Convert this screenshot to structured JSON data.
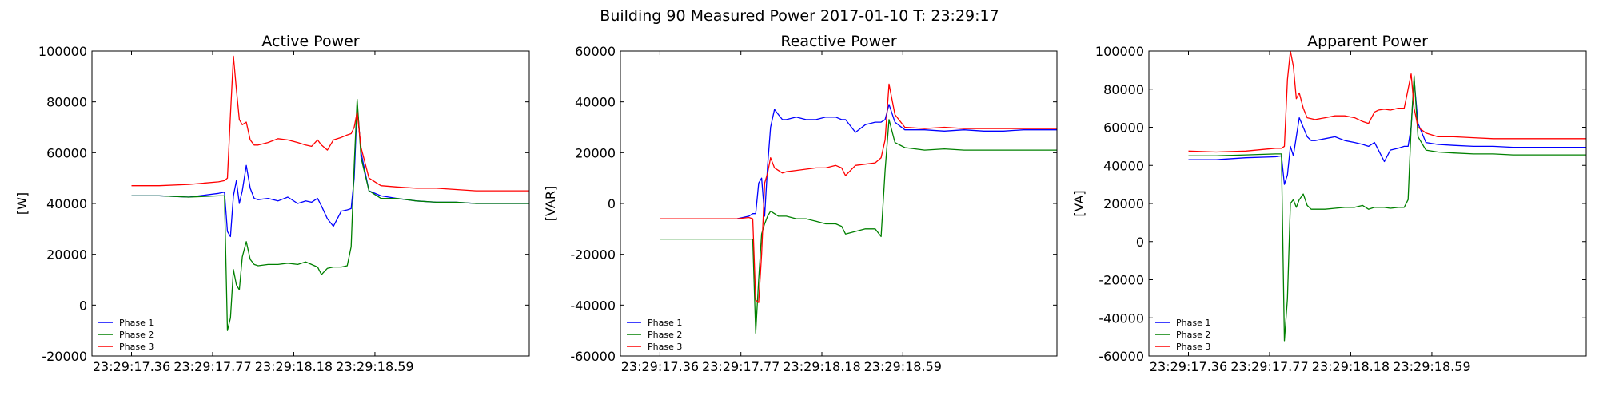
{
  "figure": {
    "suptitle": "Building 90 Measured Power 2017-01-10 T: 23:29:17"
  },
  "chart_data": [
    {
      "type": "line",
      "title": "Active Power",
      "xlabel": "",
      "ylabel": "[W]",
      "xlim": [
        17.16,
        19.37
      ],
      "ylim": [
        -20000,
        100000
      ],
      "yticks": [
        -20000,
        0,
        20000,
        40000,
        60000,
        80000,
        100000
      ],
      "xticks": [
        17.36,
        17.77,
        18.18,
        18.59
      ],
      "xtick_labels": [
        "23:29:17.36",
        "23:29:17.77",
        "23:29:18.18",
        "23:29:18.59"
      ],
      "grid": false,
      "legend_position": "lower-left",
      "series": [
        {
          "name": "Phase 1",
          "color": "#0000ff",
          "x": [
            17.36,
            17.5,
            17.65,
            17.8,
            17.83,
            17.845,
            17.86,
            17.875,
            17.89,
            17.905,
            17.92,
            17.94,
            17.96,
            17.98,
            18.0,
            18.05,
            18.1,
            18.15,
            18.2,
            18.24,
            18.27,
            18.3,
            18.32,
            18.35,
            18.38,
            18.42,
            18.45,
            18.47,
            18.485,
            18.5,
            18.52,
            18.56,
            18.62,
            18.7,
            18.8,
            18.9,
            19.0,
            19.1,
            19.2,
            19.37
          ],
          "y": [
            43000,
            43000,
            42500,
            44000,
            44500,
            29000,
            27000,
            43000,
            49000,
            40000,
            45000,
            55000,
            46000,
            42000,
            41500,
            42000,
            41000,
            42500,
            40000,
            41000,
            40500,
            42000,
            39000,
            34000,
            31000,
            37000,
            37500,
            38000,
            50000,
            79000,
            60000,
            45000,
            43000,
            42000,
            41000,
            40500,
            40500,
            40000,
            40000,
            40000
          ]
        },
        {
          "name": "Phase 2",
          "color": "#008000",
          "x": [
            17.36,
            17.5,
            17.65,
            17.8,
            17.83,
            17.845,
            17.86,
            17.875,
            17.89,
            17.905,
            17.92,
            17.94,
            17.96,
            17.98,
            18.0,
            18.05,
            18.1,
            18.15,
            18.2,
            18.24,
            18.27,
            18.3,
            18.32,
            18.35,
            18.38,
            18.42,
            18.45,
            18.47,
            18.485,
            18.5,
            18.52,
            18.56,
            18.62,
            18.7,
            18.8,
            18.9,
            19.0,
            19.1,
            19.2,
            19.37
          ],
          "y": [
            43000,
            43000,
            42500,
            43000,
            43000,
            -10000,
            -5000,
            14000,
            8000,
            6000,
            19000,
            25000,
            18000,
            16000,
            15500,
            16000,
            16000,
            16500,
            16000,
            17000,
            16000,
            15000,
            12000,
            14500,
            15000,
            15000,
            15500,
            23000,
            55000,
            81000,
            58000,
            45000,
            42000,
            42000,
            41000,
            40500,
            40500,
            40000,
            40000,
            40000
          ]
        },
        {
          "name": "Phase 3",
          "color": "#ff0000",
          "x": [
            17.36,
            17.5,
            17.65,
            17.8,
            17.83,
            17.845,
            17.86,
            17.875,
            17.89,
            17.905,
            17.92,
            17.94,
            17.96,
            17.98,
            18.0,
            18.05,
            18.1,
            18.15,
            18.2,
            18.24,
            18.27,
            18.3,
            18.32,
            18.35,
            18.38,
            18.42,
            18.45,
            18.47,
            18.485,
            18.5,
            18.52,
            18.56,
            18.62,
            18.7,
            18.8,
            18.9,
            19.0,
            19.1,
            19.2,
            19.37
          ],
          "y": [
            47000,
            47000,
            47500,
            48500,
            49000,
            50000,
            75000,
            98000,
            85000,
            73000,
            71000,
            72000,
            65000,
            63000,
            63000,
            64000,
            65500,
            65000,
            64000,
            63000,
            62500,
            65000,
            63000,
            61000,
            65000,
            66000,
            67000,
            67500,
            70000,
            76000,
            62000,
            50000,
            47000,
            46500,
            46000,
            46000,
            45500,
            45000,
            45000,
            45000
          ]
        }
      ]
    },
    {
      "type": "line",
      "title": "Reactive Power",
      "xlabel": "",
      "ylabel": "[VAR]",
      "xlim": [
        17.16,
        19.37
      ],
      "ylim": [
        -60000,
        60000
      ],
      "yticks": [
        -60000,
        -40000,
        -20000,
        0,
        20000,
        40000,
        60000
      ],
      "xticks": [
        17.36,
        17.77,
        18.18,
        18.59
      ],
      "xtick_labels": [
        "23:29:17.36",
        "23:29:17.77",
        "23:29:18.18",
        "23:29:18.59"
      ],
      "grid": false,
      "legend_position": "lower-left",
      "series": [
        {
          "name": "Phase 1",
          "color": "#0000ff",
          "x": [
            17.36,
            17.5,
            17.65,
            17.75,
            17.81,
            17.83,
            17.845,
            17.86,
            17.875,
            17.89,
            17.905,
            17.92,
            17.94,
            17.96,
            17.98,
            18.0,
            18.05,
            18.1,
            18.15,
            18.2,
            18.25,
            18.28,
            18.3,
            18.35,
            18.4,
            18.45,
            18.48,
            18.5,
            18.52,
            18.55,
            18.6,
            18.7,
            18.8,
            18.9,
            19.0,
            19.1,
            19.2,
            19.37
          ],
          "y": [
            -6000,
            -6000,
            -6000,
            -6000,
            -5000,
            -4000,
            -4000,
            8000,
            10000,
            -5000,
            15000,
            30000,
            37000,
            35000,
            33000,
            33000,
            34000,
            33000,
            33000,
            34000,
            34000,
            33000,
            33000,
            28000,
            31000,
            32000,
            32000,
            33000,
            39000,
            32000,
            29000,
            29000,
            28500,
            29000,
            28500,
            28500,
            29000,
            29000
          ]
        },
        {
          "name": "Phase 2",
          "color": "#008000",
          "x": [
            17.36,
            17.5,
            17.65,
            17.75,
            17.81,
            17.83,
            17.845,
            17.86,
            17.875,
            17.89,
            17.905,
            17.92,
            17.94,
            17.96,
            17.98,
            18.0,
            18.05,
            18.1,
            18.15,
            18.2,
            18.25,
            18.28,
            18.3,
            18.35,
            18.4,
            18.45,
            18.48,
            18.5,
            18.52,
            18.55,
            18.6,
            18.7,
            18.8,
            18.9,
            19.0,
            19.1,
            19.2,
            19.37
          ],
          "y": [
            -14000,
            -14000,
            -14000,
            -14000,
            -14000,
            -14000,
            -51000,
            -30000,
            -12000,
            -8000,
            -5000,
            -3000,
            -4000,
            -5000,
            -5000,
            -5000,
            -6000,
            -6000,
            -7000,
            -8000,
            -8000,
            -9000,
            -12000,
            -11000,
            -10000,
            -10000,
            -13000,
            13000,
            33000,
            24000,
            22000,
            21000,
            21500,
            21000,
            21000,
            21000,
            21000,
            21000
          ]
        },
        {
          "name": "Phase 3",
          "color": "#ff0000",
          "x": [
            17.36,
            17.5,
            17.65,
            17.75,
            17.81,
            17.83,
            17.845,
            17.86,
            17.875,
            17.89,
            17.905,
            17.92,
            17.94,
            17.96,
            17.98,
            18.0,
            18.05,
            18.1,
            18.15,
            18.2,
            18.25,
            18.28,
            18.3,
            18.35,
            18.4,
            18.45,
            18.48,
            18.5,
            18.52,
            18.55,
            18.6,
            18.7,
            18.8,
            18.9,
            19.0,
            19.1,
            19.2,
            19.37
          ],
          "y": [
            -6000,
            -6000,
            -6000,
            -6000,
            -5500,
            -6000,
            -38000,
            -39000,
            -20000,
            8000,
            12000,
            18000,
            14000,
            13000,
            12000,
            12500,
            13000,
            13500,
            14000,
            14000,
            15000,
            14000,
            11000,
            15000,
            15500,
            16000,
            18000,
            25000,
            47000,
            35000,
            30000,
            29500,
            30000,
            29500,
            29500,
            29500,
            29500,
            29500
          ]
        }
      ]
    },
    {
      "type": "line",
      "title": "Apparent Power",
      "xlabel": "",
      "ylabel": "[VA]",
      "xlim": [
        17.16,
        19.37
      ],
      "ylim": [
        -60000,
        100000
      ],
      "yticks": [
        -60000,
        -40000,
        -20000,
        0,
        20000,
        40000,
        60000,
        80000,
        100000
      ],
      "xticks": [
        17.36,
        17.77,
        18.18,
        18.59
      ],
      "xtick_labels": [
        "23:29:17.36",
        "23:29:17.77",
        "23:29:18.18",
        "23:29:18.59"
      ],
      "grid": false,
      "legend_position": "lower-left",
      "series": [
        {
          "name": "Phase 1",
          "color": "#0000ff",
          "x": [
            17.36,
            17.5,
            17.65,
            17.8,
            17.83,
            17.845,
            17.86,
            17.875,
            17.89,
            17.905,
            17.92,
            17.94,
            17.96,
            17.98,
            18.0,
            18.05,
            18.1,
            18.15,
            18.2,
            18.24,
            18.27,
            18.3,
            18.32,
            18.35,
            18.38,
            18.42,
            18.45,
            18.47,
            18.485,
            18.5,
            18.52,
            18.56,
            18.62,
            18.7,
            18.8,
            18.9,
            19.0,
            19.1,
            19.2,
            19.37
          ],
          "y": [
            43000,
            43000,
            44000,
            44500,
            45000,
            30000,
            35000,
            50000,
            45000,
            55000,
            65000,
            60000,
            55000,
            53000,
            53000,
            54000,
            55000,
            53000,
            52000,
            51000,
            50000,
            52000,
            48000,
            42000,
            48000,
            49000,
            50000,
            50000,
            60000,
            85000,
            62000,
            52000,
            51000,
            50500,
            50000,
            50000,
            49500,
            49500,
            49500,
            49500
          ]
        },
        {
          "name": "Phase 2",
          "color": "#008000",
          "x": [
            17.36,
            17.5,
            17.65,
            17.8,
            17.83,
            17.845,
            17.86,
            17.875,
            17.89,
            17.905,
            17.92,
            17.94,
            17.96,
            17.98,
            18.0,
            18.05,
            18.1,
            18.15,
            18.2,
            18.24,
            18.27,
            18.3,
            18.32,
            18.35,
            18.38,
            18.42,
            18.45,
            18.47,
            18.485,
            18.5,
            18.52,
            18.56,
            18.62,
            18.7,
            18.8,
            18.9,
            19.0,
            19.1,
            19.2,
            19.37
          ],
          "y": [
            45000,
            45000,
            45500,
            46000,
            46000,
            -52000,
            -30000,
            20000,
            22000,
            18000,
            22000,
            25000,
            19000,
            17000,
            17000,
            17000,
            17500,
            18000,
            18000,
            19000,
            17000,
            18000,
            18000,
            18000,
            17500,
            18000,
            18000,
            22000,
            60000,
            87000,
            55000,
            48000,
            47000,
            46500,
            46000,
            46000,
            45500,
            45500,
            45500,
            45500
          ]
        },
        {
          "name": "Phase 3",
          "color": "#ff0000",
          "x": [
            17.36,
            17.5,
            17.65,
            17.8,
            17.83,
            17.845,
            17.86,
            17.875,
            17.89,
            17.905,
            17.92,
            17.94,
            17.96,
            17.98,
            18.0,
            18.05,
            18.1,
            18.15,
            18.2,
            18.24,
            18.27,
            18.3,
            18.32,
            18.35,
            18.38,
            18.42,
            18.45,
            18.47,
            18.485,
            18.5,
            18.52,
            18.56,
            18.62,
            18.7,
            18.8,
            18.9,
            19.0,
            19.1,
            19.2,
            19.37
          ],
          "y": [
            47500,
            47000,
            47500,
            49000,
            49000,
            50000,
            85000,
            100000,
            92000,
            75000,
            78000,
            70000,
            65000,
            64500,
            64000,
            65000,
            66000,
            66000,
            65000,
            63000,
            62000,
            68000,
            69000,
            69500,
            69000,
            70000,
            70000,
            80000,
            88000,
            70000,
            60000,
            57000,
            55000,
            55000,
            54500,
            54000,
            54000,
            54000,
            54000,
            54000
          ]
        }
      ]
    }
  ]
}
